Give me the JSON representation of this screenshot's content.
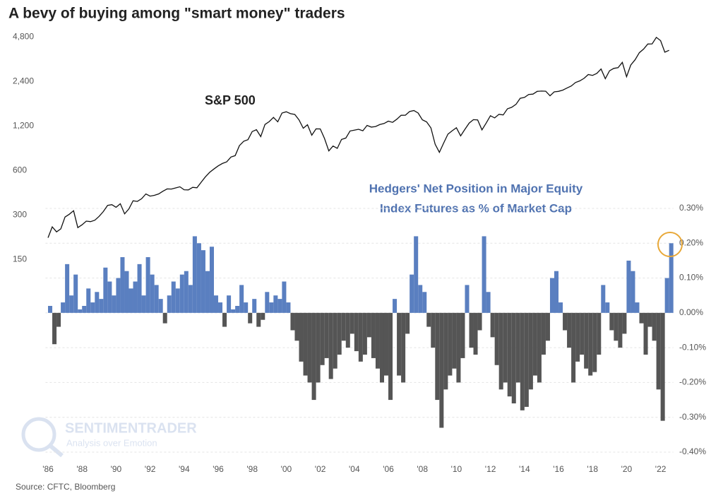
{
  "chart_data": {
    "type": "combo",
    "title": "A bevy of buying among \"smart money\" traders",
    "source": "Source: CFTC, Bloomberg",
    "watermark": [
      "SENTIMENTRADER",
      "Analysis over Emotion"
    ],
    "annotations": {
      "sp_label": "S&P 500",
      "hedgers_label": [
        "Hedgers' Net Position in Major Equity",
        "Index Futures as % of Market Cap"
      ]
    },
    "xlim": [
      1985.85,
      2022.75
    ],
    "xticks": [
      {
        "value": 1986,
        "label": "'86"
      },
      {
        "value": 1988,
        "label": "'88"
      },
      {
        "value": 1990,
        "label": "'90"
      },
      {
        "value": 1992,
        "label": "'92"
      },
      {
        "value": 1994,
        "label": "'94"
      },
      {
        "value": 1996,
        "label": "'96"
      },
      {
        "value": 1998,
        "label": "'98"
      },
      {
        "value": 2000,
        "label": "'00"
      },
      {
        "value": 2002,
        "label": "'02"
      },
      {
        "value": 2004,
        "label": "'04"
      },
      {
        "value": 2006,
        "label": "'06"
      },
      {
        "value": 2008,
        "label": "'08"
      },
      {
        "value": 2010,
        "label": "'10"
      },
      {
        "value": 2012,
        "label": "'12"
      },
      {
        "value": 2014,
        "label": "'14"
      },
      {
        "value": 2016,
        "label": "'16"
      },
      {
        "value": 2018,
        "label": "'18"
      },
      {
        "value": 2020,
        "label": "'20"
      },
      {
        "value": 2022,
        "label": "'22"
      }
    ],
    "ylim": [
      7.5,
      5200
    ],
    "ylog": true,
    "yticks": [
      {
        "value": 4800,
        "label": "4,800"
      },
      {
        "value": 2400,
        "label": "2,400"
      },
      {
        "value": 1200,
        "label": "1,200"
      },
      600,
      300,
      150
    ],
    "y2lim": [
      -0.4,
      0.3
    ],
    "y2ticks": [
      {
        "value": 0.3,
        "label": "0.30%"
      },
      {
        "value": 0.2,
        "label": "0.20%"
      },
      {
        "value": 0.1,
        "label": "0.10%"
      },
      {
        "value": 0,
        "label": "0.00%"
      },
      {
        "value": -0.1,
        "label": "-0.10%"
      },
      {
        "value": -0.2,
        "label": "-0.20%"
      },
      {
        "value": -0.3,
        "label": "-0.30%"
      },
      {
        "value": -0.4,
        "label": "-0.40%"
      }
    ],
    "grid": true,
    "x": [
      1986,
      1986.25,
      1986.5,
      1986.75,
      1987,
      1987.25,
      1987.5,
      1987.75,
      1988,
      1988.25,
      1988.5,
      1988.75,
      1989,
      1989.25,
      1989.5,
      1989.75,
      1990,
      1990.25,
      1990.5,
      1990.75,
      1991,
      1991.25,
      1991.5,
      1991.75,
      1992,
      1992.25,
      1992.5,
      1992.75,
      1993,
      1993.25,
      1993.5,
      1993.75,
      1994,
      1994.25,
      1994.5,
      1994.75,
      1995,
      1995.25,
      1995.5,
      1995.75,
      1996,
      1996.25,
      1996.5,
      1996.75,
      1997,
      1997.25,
      1997.5,
      1997.75,
      1998,
      1998.25,
      1998.5,
      1998.75,
      1999,
      1999.25,
      1999.5,
      1999.75,
      2000,
      2000.25,
      2000.5,
      2000.75,
      2001,
      2001.25,
      2001.5,
      2001.75,
      2002,
      2002.25,
      2002.5,
      2002.75,
      2003,
      2003.25,
      2003.5,
      2003.75,
      2004,
      2004.25,
      2004.5,
      2004.75,
      2005,
      2005.25,
      2005.5,
      2005.75,
      2006,
      2006.25,
      2006.5,
      2006.75,
      2007,
      2007.25,
      2007.5,
      2007.75,
      2008,
      2008.25,
      2008.5,
      2008.75,
      2009,
      2009.25,
      2009.5,
      2009.75,
      2010,
      2010.25,
      2010.5,
      2010.75,
      2011,
      2011.25,
      2011.5,
      2011.75,
      2012,
      2012.25,
      2012.5,
      2012.75,
      2013,
      2013.25,
      2013.5,
      2013.75,
      2014,
      2014.25,
      2014.5,
      2014.75,
      2015,
      2015.25,
      2015.5,
      2015.75,
      2016,
      2016.25,
      2016.5,
      2016.75,
      2017,
      2017.25,
      2017.5,
      2017.75,
      2018,
      2018.25,
      2018.5,
      2018.75,
      2019,
      2019.25,
      2019.5,
      2019.75,
      2020,
      2020.25,
      2020.5,
      2020.75,
      2021,
      2021.25,
      2021.5,
      2021.75,
      2022,
      2022.25,
      2022.5
    ],
    "series": [
      {
        "name": "S&P 500",
        "type": "line",
        "axis": "y",
        "color": "#111111",
        "values": [
          211,
          250,
          231,
          242,
          291,
          304,
          321,
          247,
          258,
          273,
          271,
          277,
          294,
          317,
          349,
          353,
          339,
          358,
          306,
          330,
          375,
          371,
          387,
          417,
          403,
          408,
          417,
          435,
          451,
          450,
          458,
          466,
          445,
          444,
          462,
          459,
          500,
          544,
          584,
          615,
          645,
          670,
          687,
          740,
          757,
          885,
          947,
          970,
          1101,
          1133,
          1017,
          1229,
          1286,
          1372,
          1282,
          1469,
          1498,
          1454,
          1436,
          1320,
          1160,
          1224,
          1040,
          1148,
          1147,
          989,
          815,
          879,
          848,
          974,
          995,
          1111,
          1126,
          1140,
          1114,
          1211,
          1180,
          1191,
          1228,
          1248,
          1294,
          1270,
          1335,
          1418,
          1420,
          1503,
          1526,
          1468,
          1322,
          1280,
          1166,
          903,
          797,
          919,
          1057,
          1115,
          1169,
          1030,
          1141,
          1257,
          1325,
          1320,
          1131,
          1257,
          1408,
          1362,
          1440,
          1426,
          1569,
          1606,
          1681,
          1848,
          1872,
          1960,
          1972,
          2058,
          2067,
          2063,
          1920,
          2043,
          2059,
          2098,
          2168,
          2238,
          2362,
          2423,
          2519,
          2673,
          2640,
          2718,
          2913,
          2506,
          2834,
          2941,
          2976,
          3230,
          2584,
          3100,
          3363,
          3756,
          3972,
          4297,
          4307,
          4766,
          4530,
          3785,
          3900
        ]
      },
      {
        "name": "Hedgers' Net Position",
        "type": "bar",
        "axis": "y2",
        "color": "#5a7fc0",
        "negative_color": "#555555",
        "values": [
          0.02,
          -0.09,
          -0.04,
          0.03,
          0.14,
          0.05,
          0.11,
          0.01,
          0.02,
          0.07,
          0.03,
          0.06,
          0.04,
          0.13,
          0.09,
          0.05,
          0.1,
          0.16,
          0.12,
          0.07,
          0.09,
          0.14,
          0.05,
          0.16,
          0.11,
          0.08,
          0.04,
          -0.03,
          0.05,
          0.09,
          0.07,
          0.11,
          0.12,
          0.08,
          0.22,
          0.2,
          0.18,
          0.12,
          0.19,
          0.05,
          0.03,
          -0.04,
          0.05,
          0.01,
          0.02,
          0.08,
          0.03,
          -0.03,
          0.04,
          -0.04,
          -0.02,
          0.06,
          0.03,
          0.05,
          0.04,
          0.09,
          0.03,
          -0.05,
          -0.08,
          -0.14,
          -0.18,
          -0.2,
          -0.25,
          -0.2,
          -0.15,
          -0.13,
          -0.19,
          -0.16,
          -0.12,
          -0.08,
          -0.1,
          -0.06,
          -0.11,
          -0.14,
          -0.12,
          -0.07,
          -0.13,
          -0.16,
          -0.2,
          -0.18,
          -0.25,
          0.04,
          -0.18,
          -0.2,
          -0.06,
          0.11,
          0.22,
          0.08,
          0.06,
          -0.04,
          -0.1,
          -0.25,
          -0.33,
          -0.22,
          -0.18,
          -0.16,
          -0.2,
          -0.13,
          0.08,
          -0.1,
          -0.12,
          -0.05,
          0.22,
          0.06,
          -0.07,
          -0.15,
          -0.22,
          -0.2,
          -0.24,
          -0.26,
          -0.2,
          -0.28,
          -0.27,
          -0.22,
          -0.18,
          -0.2,
          -0.12,
          -0.08,
          0.1,
          0.12,
          0.03,
          -0.05,
          -0.1,
          -0.2,
          -0.14,
          -0.12,
          -0.16,
          -0.18,
          -0.17,
          -0.12,
          0.08,
          0.03,
          -0.05,
          -0.08,
          -0.1,
          -0.06,
          0.15,
          0.12,
          0.03,
          -0.03,
          -0.12,
          -0.04,
          -0.08,
          -0.22,
          -0.31,
          0.1,
          0.2
        ]
      }
    ]
  }
}
